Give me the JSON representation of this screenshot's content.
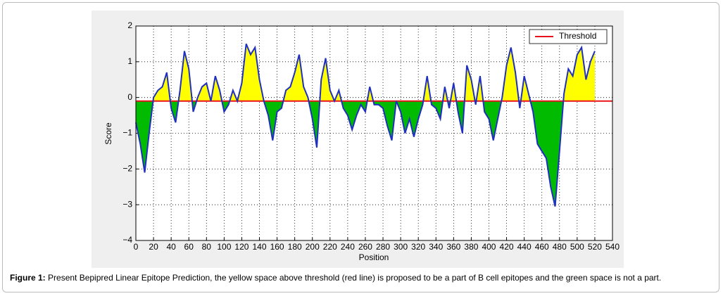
{
  "chart_data": {
    "type": "line",
    "xlabel": "Position",
    "ylabel": "Score",
    "x": [
      0,
      5,
      10,
      15,
      20,
      25,
      30,
      35,
      40,
      45,
      50,
      55,
      60,
      65,
      70,
      75,
      80,
      85,
      90,
      95,
      100,
      105,
      110,
      115,
      120,
      125,
      130,
      135,
      140,
      145,
      150,
      155,
      160,
      165,
      170,
      175,
      180,
      185,
      190,
      195,
      200,
      205,
      210,
      215,
      220,
      225,
      230,
      235,
      240,
      245,
      250,
      255,
      260,
      265,
      270,
      275,
      280,
      285,
      290,
      295,
      300,
      305,
      310,
      315,
      320,
      325,
      330,
      335,
      340,
      345,
      350,
      355,
      360,
      365,
      370,
      375,
      380,
      385,
      390,
      395,
      400,
      405,
      410,
      415,
      420,
      425,
      430,
      435,
      440,
      445,
      450,
      455,
      460,
      465,
      470,
      475,
      480,
      485,
      490,
      495,
      500,
      505,
      510,
      515,
      520
    ],
    "series": [
      {
        "name": "Score",
        "color": "#1f2fbf",
        "values": [
          -0.7,
          -1.3,
          -2.1,
          -1.0,
          0.0,
          0.2,
          0.3,
          0.7,
          -0.3,
          -0.7,
          0.2,
          1.3,
          0.8,
          -0.4,
          0.0,
          0.3,
          0.4,
          -0.1,
          0.6,
          0.2,
          -0.4,
          -0.2,
          0.2,
          -0.1,
          0.4,
          1.5,
          1.2,
          1.4,
          0.5,
          -0.1,
          -0.5,
          -1.2,
          -0.4,
          -0.3,
          0.2,
          0.3,
          0.7,
          1.2,
          0.3,
          0.0,
          -0.6,
          -1.4,
          0.5,
          1.1,
          0.2,
          -0.1,
          0.2,
          -0.3,
          -0.5,
          -0.9,
          -0.5,
          -0.2,
          -0.4,
          0.3,
          -0.2,
          -0.2,
          -0.3,
          -0.8,
          -1.2,
          -0.1,
          -0.4,
          -1.0,
          -0.6,
          -1.1,
          -0.6,
          -0.2,
          0.6,
          -0.2,
          -0.3,
          -0.6,
          0.3,
          -0.3,
          0.4,
          -0.4,
          -1.0,
          0.9,
          0.5,
          -0.2,
          0.6,
          -0.4,
          -0.6,
          -1.2,
          -0.6,
          0.0,
          0.9,
          1.4,
          0.7,
          -0.3,
          0.6,
          0.1,
          -0.4,
          -1.3,
          -1.5,
          -1.7,
          -2.5,
          -3.05,
          -1.5,
          0.1,
          0.8,
          0.6,
          1.2,
          1.4,
          0.5,
          1.0,
          1.3
        ]
      }
    ],
    "threshold": {
      "name": "Threshold",
      "value": -0.1,
      "color": "#e8141c"
    },
    "fill_above": "#ffff00",
    "fill_below": "#00bb00",
    "xlim": [
      0,
      540
    ],
    "xticks": [
      0,
      20,
      40,
      60,
      80,
      100,
      120,
      140,
      160,
      180,
      200,
      220,
      240,
      260,
      280,
      300,
      320,
      340,
      360,
      380,
      400,
      420,
      440,
      460,
      480,
      500,
      520,
      540
    ],
    "ylim": [
      -4,
      2
    ],
    "yticks": [
      {
        "value": -4,
        "label": "−4"
      },
      {
        "value": -3,
        "label": "−3"
      },
      {
        "value": -2,
        "label": "−2"
      },
      {
        "value": -1,
        "label": "−1"
      },
      0,
      1,
      2
    ],
    "grid": true,
    "legend": "upper right"
  },
  "caption": {
    "label": "Figure 1:",
    "text": "Present Bepipred Linear Epitope Prediction, the yellow space above threshold (red line) is proposed to be a part of B cell epitopes and the green space is not a part."
  }
}
